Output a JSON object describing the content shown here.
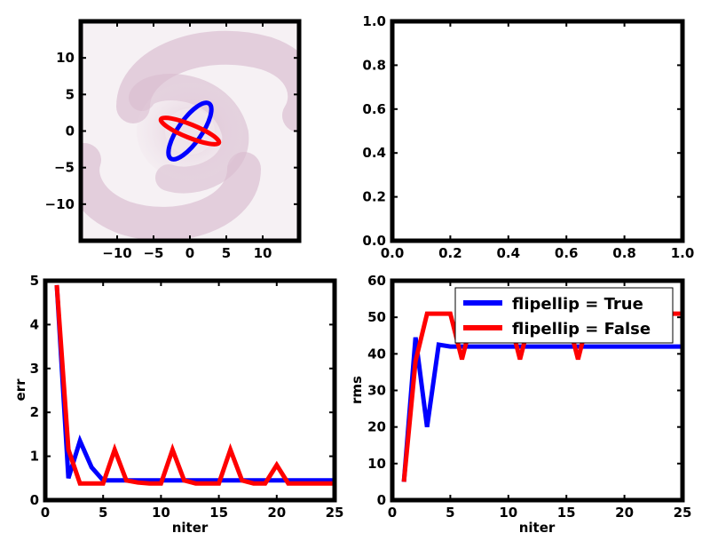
{
  "chart_data": [
    {
      "type": "image",
      "title": "",
      "xlabel": "",
      "ylabel": "",
      "xlim": [
        -15,
        15
      ],
      "ylim": [
        -15,
        15
      ],
      "xticks": [
        -10,
        -5,
        0,
        5,
        10
      ],
      "yticks": [
        -10,
        -5,
        0,
        5,
        10
      ],
      "image_description": "faint pink spiral-galaxy density image",
      "ellipses": [
        {
          "color": "#0000ff",
          "center": [
            0,
            0
          ],
          "semi_major": 4.6,
          "semi_minor": 1.6,
          "angle_deg": 55
        },
        {
          "color": "#ff0000",
          "center": [
            0,
            0
          ],
          "semi_major": 4.3,
          "semi_minor": 0.9,
          "angle_deg": -22
        }
      ]
    },
    {
      "type": "empty",
      "title": "",
      "xlim": [
        0,
        1
      ],
      "ylim": [
        0,
        1
      ],
      "xticks": [
        "0.0",
        "0.2",
        "0.4",
        "0.6",
        "0.8",
        "1.0"
      ],
      "yticks": [
        "0.0",
        "0.2",
        "0.4",
        "0.6",
        "0.8",
        "1.0"
      ]
    },
    {
      "type": "line",
      "title": "",
      "xlabel": "niter",
      "ylabel": "err",
      "xlim": [
        0,
        25
      ],
      "ylim": [
        0,
        5
      ],
      "xticks": [
        0,
        5,
        10,
        15,
        20,
        25
      ],
      "yticks": [
        0,
        1,
        2,
        3,
        4,
        5
      ],
      "x": [
        1,
        2,
        3,
        4,
        5,
        6,
        7,
        8,
        9,
        10,
        11,
        12,
        13,
        14,
        15,
        16,
        17,
        18,
        19,
        20,
        21,
        22,
        23,
        24,
        25
      ],
      "series": [
        {
          "color": "#0000ff",
          "values": [
            4.9,
            0.5,
            1.35,
            0.75,
            0.45,
            0.45,
            0.45,
            0.45,
            0.45,
            0.45,
            0.45,
            0.45,
            0.45,
            0.45,
            0.45,
            0.45,
            0.45,
            0.45,
            0.45,
            0.45,
            0.45,
            0.45,
            0.45,
            0.45,
            0.45
          ]
        },
        {
          "color": "#ff0000",
          "values": [
            4.9,
            1.15,
            0.38,
            0.38,
            0.38,
            1.15,
            0.45,
            0.4,
            0.38,
            0.38,
            1.15,
            0.45,
            0.38,
            0.38,
            0.38,
            1.15,
            0.45,
            0.38,
            0.38,
            0.8,
            0.38,
            0.38,
            0.38,
            0.38,
            0.38
          ]
        }
      ]
    },
    {
      "type": "line",
      "title": "",
      "xlabel": "niter",
      "ylabel": "rms",
      "xlim": [
        0,
        25
      ],
      "ylim": [
        0,
        60
      ],
      "xticks": [
        0,
        5,
        10,
        15,
        20,
        25
      ],
      "yticks": [
        0,
        10,
        20,
        30,
        40,
        50,
        60
      ],
      "x": [
        1,
        2,
        3,
        4,
        5,
        6,
        7,
        8,
        9,
        10,
        11,
        12,
        13,
        14,
        15,
        16,
        17,
        18,
        19,
        20,
        21,
        22,
        23,
        24,
        25
      ],
      "legend_position": "upper-right",
      "series": [
        {
          "name": "flipellip = True",
          "color": "#0000ff",
          "values": [
            5,
            44.5,
            20,
            42.5,
            42,
            42,
            42,
            42,
            42,
            42,
            42,
            42,
            42,
            42,
            42,
            42,
            42,
            42,
            42,
            42,
            42,
            42,
            42,
            42,
            42
          ]
        },
        {
          "name": "flipellip = False",
          "color": "#ff0000",
          "values": [
            5,
            38,
            51,
            51,
            51,
            38.5,
            51,
            51,
            51,
            51,
            38.5,
            51,
            51,
            51,
            51,
            38.5,
            51,
            51,
            51,
            51,
            51,
            51,
            51,
            51,
            51
          ]
        }
      ]
    }
  ]
}
